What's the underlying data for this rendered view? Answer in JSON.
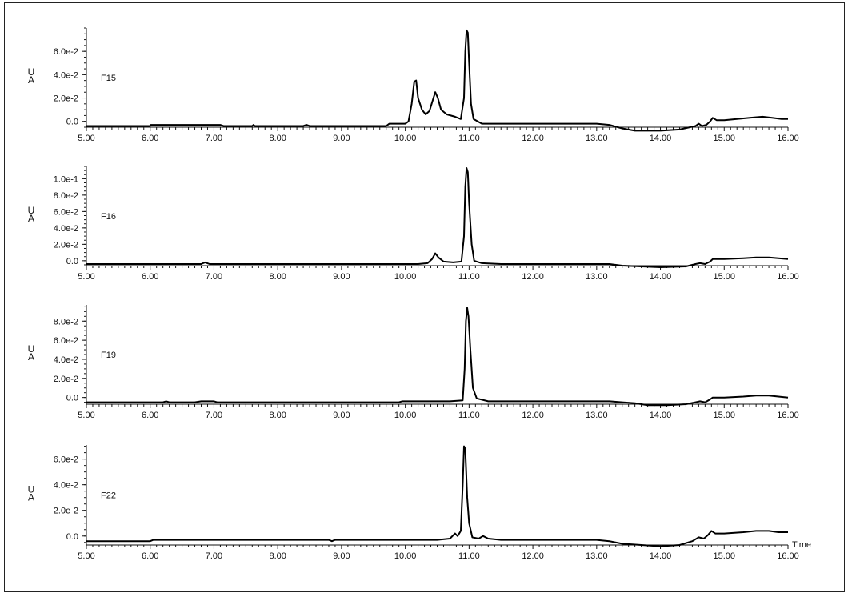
{
  "figure": {
    "x_axis_label": "Time"
  },
  "chart_data": [
    {
      "type": "line",
      "label": "F15",
      "unit": [
        "U",
        "A"
      ],
      "xlim": [
        5.0,
        16.0
      ],
      "x_ticks": [
        "5.00",
        "6.00",
        "7.00",
        "8.00",
        "9.00",
        "10.00",
        "11.00",
        "12.00",
        "13.00",
        "14.00",
        "15.00",
        "16.00"
      ],
      "ylim": [
        -0.005,
        0.08
      ],
      "y_ticks": [
        {
          "value": 0.0,
          "label": "0.0"
        },
        {
          "value": 0.02,
          "label": "2.0e-2"
        },
        {
          "value": 0.04,
          "label": "4.0e-2"
        },
        {
          "value": 0.06,
          "label": "6.0e-2"
        }
      ],
      "points": [
        [
          5.0,
          -0.004
        ],
        [
          6.0,
          -0.004
        ],
        [
          6.01,
          -0.003
        ],
        [
          7.1,
          -0.003
        ],
        [
          7.15,
          -0.004
        ],
        [
          7.6,
          -0.004
        ],
        [
          7.62,
          -0.003
        ],
        [
          7.64,
          -0.004
        ],
        [
          8.4,
          -0.004
        ],
        [
          8.45,
          -0.003
        ],
        [
          8.5,
          -0.004
        ],
        [
          9.7,
          -0.004
        ],
        [
          9.75,
          -0.002
        ],
        [
          10.0,
          -0.002
        ],
        [
          10.05,
          0.0
        ],
        [
          10.1,
          0.015
        ],
        [
          10.14,
          0.034
        ],
        [
          10.17,
          0.035
        ],
        [
          10.2,
          0.02
        ],
        [
          10.26,
          0.01
        ],
        [
          10.32,
          0.006
        ],
        [
          10.38,
          0.009
        ],
        [
          10.43,
          0.018
        ],
        [
          10.47,
          0.025
        ],
        [
          10.51,
          0.02
        ],
        [
          10.56,
          0.01
        ],
        [
          10.65,
          0.006
        ],
        [
          10.78,
          0.004
        ],
        [
          10.87,
          0.002
        ],
        [
          10.92,
          0.02
        ],
        [
          10.94,
          0.06
        ],
        [
          10.96,
          0.078
        ],
        [
          10.98,
          0.076
        ],
        [
          11.0,
          0.05
        ],
        [
          11.03,
          0.015
        ],
        [
          11.07,
          0.002
        ],
        [
          11.2,
          -0.002
        ],
        [
          11.5,
          -0.002
        ],
        [
          13.0,
          -0.002
        ],
        [
          13.2,
          -0.003
        ],
        [
          13.4,
          -0.006
        ],
        [
          13.6,
          -0.008
        ],
        [
          13.8,
          -0.008
        ],
        [
          14.0,
          -0.008
        ],
        [
          14.3,
          -0.007
        ],
        [
          14.55,
          -0.004
        ],
        [
          14.6,
          -0.002
        ],
        [
          14.65,
          -0.004
        ],
        [
          14.72,
          -0.003
        ],
        [
          14.78,
          0.0
        ],
        [
          14.82,
          0.003
        ],
        [
          14.88,
          0.001
        ],
        [
          15.0,
          0.001
        ],
        [
          15.2,
          0.002
        ],
        [
          15.4,
          0.003
        ],
        [
          15.6,
          0.004
        ],
        [
          15.75,
          0.003
        ],
        [
          15.9,
          0.002
        ],
        [
          16.0,
          0.002
        ]
      ]
    },
    {
      "type": "line",
      "label": "F16",
      "unit": [
        "U",
        "A"
      ],
      "xlim": [
        5.0,
        16.0
      ],
      "x_ticks": [
        "5.00",
        "6.00",
        "7.00",
        "8.00",
        "9.00",
        "10.00",
        "11.00",
        "12.00",
        "13.00",
        "14.00",
        "15.00",
        "16.00"
      ],
      "ylim": [
        -0.006,
        0.115
      ],
      "y_ticks": [
        {
          "value": 0.0,
          "label": "0.0"
        },
        {
          "value": 0.02,
          "label": "2.0e-2"
        },
        {
          "value": 0.04,
          "label": "4.0e-2"
        },
        {
          "value": 0.06,
          "label": "6.0e-2"
        },
        {
          "value": 0.08,
          "label": "8.0e-2"
        },
        {
          "value": 0.1,
          "label": "1.0e-1"
        }
      ],
      "points": [
        [
          5.0,
          -0.004
        ],
        [
          6.8,
          -0.004
        ],
        [
          6.86,
          -0.002
        ],
        [
          6.93,
          -0.004
        ],
        [
          8.0,
          -0.004
        ],
        [
          9.0,
          -0.004
        ],
        [
          10.0,
          -0.004
        ],
        [
          10.2,
          -0.004
        ],
        [
          10.35,
          -0.003
        ],
        [
          10.42,
          0.002
        ],
        [
          10.47,
          0.009
        ],
        [
          10.52,
          0.004
        ],
        [
          10.6,
          -0.001
        ],
        [
          10.75,
          -0.002
        ],
        [
          10.88,
          -0.001
        ],
        [
          10.92,
          0.03
        ],
        [
          10.94,
          0.09
        ],
        [
          10.96,
          0.113
        ],
        [
          10.98,
          0.108
        ],
        [
          11.0,
          0.07
        ],
        [
          11.04,
          0.02
        ],
        [
          11.08,
          0.0
        ],
        [
          11.2,
          -0.003
        ],
        [
          11.5,
          -0.004
        ],
        [
          13.0,
          -0.004
        ],
        [
          13.2,
          -0.004
        ],
        [
          13.4,
          -0.006
        ],
        [
          13.7,
          -0.007
        ],
        [
          14.0,
          -0.008
        ],
        [
          14.4,
          -0.007
        ],
        [
          14.55,
          -0.004
        ],
        [
          14.62,
          -0.003
        ],
        [
          14.7,
          -0.004
        ],
        [
          14.78,
          -0.001
        ],
        [
          14.82,
          0.002
        ],
        [
          15.0,
          0.002
        ],
        [
          15.3,
          0.003
        ],
        [
          15.5,
          0.004
        ],
        [
          15.7,
          0.004
        ],
        [
          15.85,
          0.003
        ],
        [
          16.0,
          0.002
        ]
      ]
    },
    {
      "type": "line",
      "label": "F19",
      "unit": [
        "U",
        "A"
      ],
      "xlim": [
        5.0,
        16.0
      ],
      "x_ticks": [
        "5.00",
        "6.00",
        "7.00",
        "8.00",
        "9.00",
        "10.00",
        "11.00",
        "12.00",
        "13.00",
        "14.00",
        "15.00",
        "16.00"
      ],
      "ylim": [
        -0.007,
        0.097
      ],
      "y_ticks": [
        {
          "value": 0.0,
          "label": "0.0"
        },
        {
          "value": 0.02,
          "label": "2.0e-2"
        },
        {
          "value": 0.04,
          "label": "4.0e-2"
        },
        {
          "value": 0.06,
          "label": "6.0e-2"
        },
        {
          "value": 0.08,
          "label": "8.0e-2"
        }
      ],
      "points": [
        [
          5.0,
          -0.005
        ],
        [
          6.2,
          -0.005
        ],
        [
          6.25,
          -0.004
        ],
        [
          6.3,
          -0.005
        ],
        [
          6.7,
          -0.005
        ],
        [
          6.8,
          -0.004
        ],
        [
          7.0,
          -0.004
        ],
        [
          7.05,
          -0.005
        ],
        [
          9.5,
          -0.005
        ],
        [
          9.9,
          -0.005
        ],
        [
          9.95,
          -0.004
        ],
        [
          10.7,
          -0.004
        ],
        [
          10.9,
          -0.003
        ],
        [
          10.93,
          0.03
        ],
        [
          10.95,
          0.08
        ],
        [
          10.97,
          0.094
        ],
        [
          10.99,
          0.085
        ],
        [
          11.02,
          0.05
        ],
        [
          11.06,
          0.01
        ],
        [
          11.12,
          -0.001
        ],
        [
          11.3,
          -0.004
        ],
        [
          13.0,
          -0.004
        ],
        [
          13.2,
          -0.004
        ],
        [
          13.4,
          -0.005
        ],
        [
          13.6,
          -0.006
        ],
        [
          13.8,
          -0.008
        ],
        [
          14.1,
          -0.008
        ],
        [
          14.4,
          -0.007
        ],
        [
          14.55,
          -0.005
        ],
        [
          14.62,
          -0.004
        ],
        [
          14.7,
          -0.005
        ],
        [
          14.78,
          -0.002
        ],
        [
          14.82,
          0.0
        ],
        [
          15.0,
          0.0
        ],
        [
          15.3,
          0.001
        ],
        [
          15.5,
          0.002
        ],
        [
          15.7,
          0.002
        ],
        [
          15.85,
          0.001
        ],
        [
          16.0,
          0.0
        ]
      ]
    },
    {
      "type": "line",
      "label": "F22",
      "unit": [
        "U",
        "A"
      ],
      "xlim": [
        5.0,
        16.0
      ],
      "x_ticks": [
        "5.00",
        "6.00",
        "7.00",
        "8.00",
        "9.00",
        "10.00",
        "11.00",
        "12.00",
        "13.00",
        "14.00",
        "15.00",
        "16.00"
      ],
      "ylim": [
        -0.007,
        0.071
      ],
      "y_ticks": [
        {
          "value": 0.0,
          "label": "0.0"
        },
        {
          "value": 0.02,
          "label": "2.0e-2"
        },
        {
          "value": 0.04,
          "label": "4.0e-2"
        },
        {
          "value": 0.06,
          "label": "6.0e-2"
        }
      ],
      "points": [
        [
          5.0,
          -0.004
        ],
        [
          5.5,
          -0.004
        ],
        [
          6.0,
          -0.004
        ],
        [
          6.05,
          -0.003
        ],
        [
          8.8,
          -0.003
        ],
        [
          8.85,
          -0.004
        ],
        [
          8.9,
          -0.003
        ],
        [
          10.5,
          -0.003
        ],
        [
          10.7,
          -0.002
        ],
        [
          10.78,
          0.002
        ],
        [
          10.82,
          0.0
        ],
        [
          10.87,
          0.004
        ],
        [
          10.9,
          0.04
        ],
        [
          10.92,
          0.07
        ],
        [
          10.94,
          0.068
        ],
        [
          10.97,
          0.03
        ],
        [
          11.0,
          0.01
        ],
        [
          11.05,
          -0.001
        ],
        [
          11.15,
          -0.002
        ],
        [
          11.22,
          0.0
        ],
        [
          11.3,
          -0.002
        ],
        [
          11.5,
          -0.003
        ],
        [
          13.0,
          -0.003
        ],
        [
          13.2,
          -0.004
        ],
        [
          13.4,
          -0.006
        ],
        [
          13.7,
          -0.007
        ],
        [
          14.0,
          -0.008
        ],
        [
          14.3,
          -0.007
        ],
        [
          14.5,
          -0.004
        ],
        [
          14.6,
          -0.001
        ],
        [
          14.68,
          -0.002
        ],
        [
          14.75,
          0.001
        ],
        [
          14.8,
          0.004
        ],
        [
          14.86,
          0.002
        ],
        [
          15.0,
          0.002
        ],
        [
          15.3,
          0.003
        ],
        [
          15.5,
          0.004
        ],
        [
          15.7,
          0.004
        ],
        [
          15.85,
          0.003
        ],
        [
          16.0,
          0.003
        ]
      ]
    }
  ]
}
